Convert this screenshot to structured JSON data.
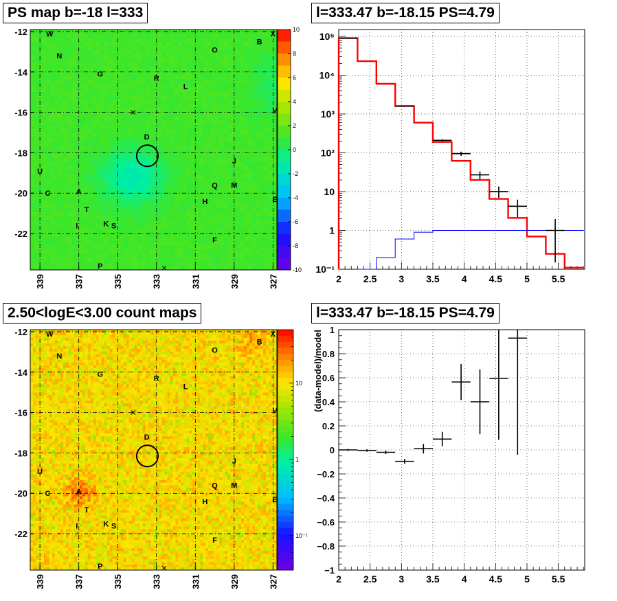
{
  "panels": {
    "ps_map": {
      "title": "PS map b=-18 l=333"
    },
    "spectrum": {
      "title": "l=333.47 b=-18.15 PS=4.79"
    },
    "count_map": {
      "title": "2.50<logE<3.00 count maps"
    },
    "residual": {
      "title": "l=333.47 b=-18.15 PS=4.79"
    }
  },
  "map_axes": {
    "x_ticks": [
      "339",
      "337",
      "335",
      "333",
      "331",
      "329",
      "327"
    ],
    "y_ticks": [
      "-12",
      "-14",
      "-16",
      "-18",
      "-20",
      "-22"
    ],
    "xlim": [
      339.5,
      326.8
    ],
    "ylim": [
      -23.8,
      -11.9
    ]
  },
  "source_labels": [
    {
      "name": "W",
      "l": 338.5,
      "b": -12.1
    },
    {
      "name": "X",
      "l": 327.0,
      "b": -12.1
    },
    {
      "name": "B",
      "l": 327.7,
      "b": -12.5
    },
    {
      "name": "O",
      "l": 330.0,
      "b": -12.9
    },
    {
      "name": "N",
      "l": 338.0,
      "b": -13.2
    },
    {
      "name": "G",
      "l": 335.9,
      "b": -14.1
    },
    {
      "name": "R",
      "l": 333.0,
      "b": -14.3
    },
    {
      "name": "L",
      "l": 331.5,
      "b": -14.7
    },
    {
      "name": "V",
      "l": 326.9,
      "b": -15.9
    },
    {
      "name": "D",
      "l": 333.5,
      "b": -17.2
    },
    {
      "name": "J",
      "l": 329.0,
      "b": -18.4
    },
    {
      "name": "U",
      "l": 339.0,
      "b": -18.9
    },
    {
      "name": "Q",
      "l": 330.0,
      "b": -19.6
    },
    {
      "name": "M",
      "l": 329.0,
      "b": -19.6
    },
    {
      "name": "C",
      "l": 338.6,
      "b": -20.0
    },
    {
      "name": "A",
      "l": 337.0,
      "b": -19.9
    },
    {
      "name": "H",
      "l": 330.5,
      "b": -20.4
    },
    {
      "name": "E",
      "l": 326.9,
      "b": -20.3
    },
    {
      "name": "T",
      "l": 336.6,
      "b": -20.8
    },
    {
      "name": "K",
      "l": 335.6,
      "b": -21.5
    },
    {
      "name": "S",
      "l": 335.2,
      "b": -21.6
    },
    {
      "name": "I",
      "l": 337.1,
      "b": -21.6
    },
    {
      "name": "F",
      "l": 330.0,
      "b": -22.3
    },
    {
      "name": "P",
      "l": 335.9,
      "b": -23.6
    }
  ],
  "circle": {
    "l": 333.47,
    "b": -18.15,
    "r": 0.55
  },
  "crosses": [
    {
      "l": 334.2,
      "b": -16.0
    },
    {
      "l": 332.6,
      "b": -23.7
    }
  ],
  "ps_colorbar": {
    "ticks": [
      "10",
      "8",
      "6",
      "4",
      "2",
      "0",
      "-2",
      "-4",
      "-6",
      "-8",
      "-10"
    ],
    "range": [
      -10,
      10
    ]
  },
  "count_colorbar": {
    "ticks": [
      "10",
      "1",
      "10⁻¹"
    ],
    "tick_values": [
      10,
      1,
      0.1
    ],
    "range_log": [
      -1.45,
      1.7
    ]
  },
  "chart_data": [
    {
      "type": "line",
      "panel": "spectrum",
      "log_y": true,
      "xlim": [
        2.0,
        5.92
      ],
      "ylim": [
        0.1,
        150000
      ],
      "x_ticks": [
        "2",
        "2.5",
        "3",
        "3.5",
        "4",
        "4.5",
        "5",
        "5.5"
      ],
      "y_ticks": [
        "10⁻¹",
        "1",
        "10",
        "10²",
        "10³",
        "10⁴",
        "10⁵"
      ],
      "series": [
        {
          "color": "#ff0000",
          "style": "step",
          "edges": [
            2.0,
            2.3,
            2.6,
            2.9,
            3.2,
            3.5,
            3.8,
            4.1,
            4.4,
            4.7,
            5.0,
            5.3,
            5.6,
            5.9
          ],
          "values": [
            90000,
            23000,
            6000,
            1600,
            600,
            190,
            62,
            20,
            6.5,
            2.1,
            0.7,
            0.25,
            0.11
          ]
        },
        {
          "color": "#0000ff",
          "style": "step",
          "edges": [
            2.3,
            2.6,
            2.9,
            3.2,
            3.5,
            5.9
          ],
          "values": [
            0.1,
            0.2,
            0.6,
            0.9,
            1.0
          ]
        },
        {
          "color": "#000000",
          "style": "points",
          "x": [
            2.15,
            3.05,
            3.65,
            3.95,
            4.25,
            4.55,
            4.85,
            5.45
          ],
          "y": [
            90000,
            1600,
            210,
            95,
            27,
            10,
            4.2,
            1.0
          ],
          "xerr": [
            0.15,
            0.15,
            0.15,
            0.15,
            0.15,
            0.15,
            0.15,
            0.15
          ],
          "ylo": [
            88000,
            1550,
            195,
            83,
            21,
            6.9,
            2.2,
            0.15
          ],
          "yhi": [
            92000,
            1650,
            225,
            107,
            33,
            13.5,
            6.2,
            1.95
          ]
        }
      ]
    },
    {
      "type": "scatter",
      "panel": "residual",
      "xlim": [
        2.0,
        5.92
      ],
      "ylim": [
        -1,
        1
      ],
      "ylabel": "(data-model)/model",
      "x_ticks": [
        "2",
        "2.5",
        "3",
        "3.5",
        "4",
        "4.5",
        "5",
        "5.5"
      ],
      "y_ticks": [
        "1",
        "0.8",
        "0.6",
        "0.4",
        "0.2",
        "0",
        "−0.2",
        "−0.4",
        "−0.6",
        "−0.8",
        "−1"
      ],
      "series": [
        {
          "x": [
            2.15,
            2.45,
            2.75,
            3.05,
            3.35,
            3.65,
            3.95,
            4.25,
            4.55,
            4.85
          ],
          "y": [
            0.0,
            -0.005,
            -0.02,
            -0.095,
            0.01,
            0.09,
            0.565,
            0.4,
            0.595,
            0.93
          ],
          "err": [
            0.008,
            0.01,
            0.015,
            0.02,
            0.04,
            0.06,
            0.15,
            0.27,
            0.51,
            0.97
          ],
          "xerr": 0.15
        }
      ]
    }
  ]
}
